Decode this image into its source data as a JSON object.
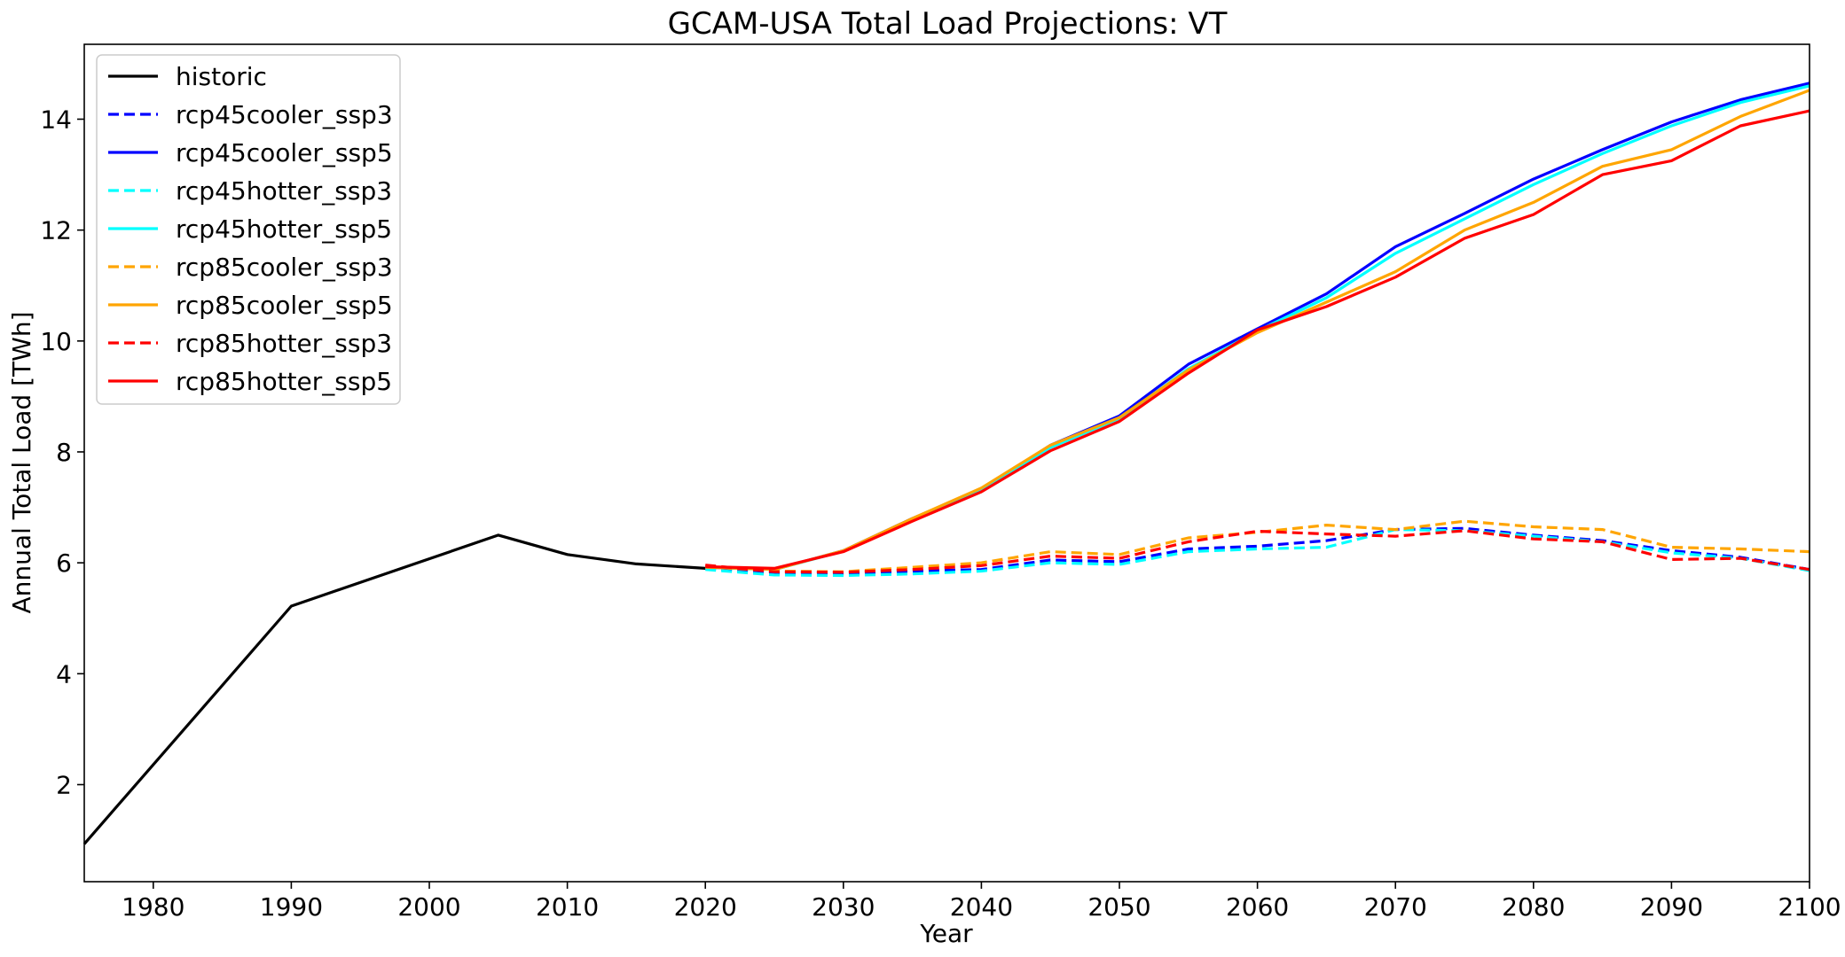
{
  "chart_data": {
    "type": "line",
    "title": "GCAM-USA Total Load Projections: VT",
    "xlabel": "Year",
    "ylabel": "Annual Total Load [TWh]",
    "xlim": [
      1975,
      2100
    ],
    "ylim": [
      0.25,
      15.35
    ],
    "xticks": [
      1980,
      1990,
      2000,
      2010,
      2020,
      2030,
      2040,
      2050,
      2060,
      2070,
      2080,
      2090,
      2100
    ],
    "yticks": [
      2,
      4,
      6,
      8,
      10,
      12,
      14
    ],
    "grid": false,
    "legend_position": "upper-left",
    "series": [
      {
        "name": "historic",
        "color": "#000000",
        "dash": "solid",
        "x": [
          1975,
          1990,
          2005,
          2010,
          2015,
          2020
        ],
        "y": [
          0.93,
          5.22,
          6.5,
          6.15,
          5.98,
          5.9
        ]
      },
      {
        "name": "rcp45cooler_ssp3",
        "color": "#0000ff",
        "dash": "dashed",
        "x": [
          2020,
          2025,
          2030,
          2035,
          2040,
          2045,
          2050,
          2055,
          2060,
          2065,
          2070,
          2075,
          2080,
          2085,
          2090,
          2095,
          2100
        ],
        "y": [
          5.9,
          5.82,
          5.8,
          5.85,
          5.88,
          6.05,
          6.02,
          6.25,
          6.3,
          6.4,
          6.6,
          6.62,
          6.5,
          6.4,
          6.22,
          6.1,
          5.88
        ]
      },
      {
        "name": "rcp45cooler_ssp5",
        "color": "#0000ff",
        "dash": "solid",
        "x": [
          2020,
          2025,
          2030,
          2035,
          2040,
          2045,
          2050,
          2055,
          2060,
          2065,
          2070,
          2075,
          2080,
          2085,
          2090,
          2095,
          2100
        ],
        "y": [
          5.92,
          5.88,
          6.22,
          6.8,
          7.32,
          8.12,
          8.65,
          9.58,
          10.22,
          10.85,
          11.7,
          12.3,
          12.92,
          13.45,
          13.95,
          14.35,
          14.65
        ]
      },
      {
        "name": "rcp45hotter_ssp3",
        "color": "#00ffff",
        "dash": "dashed",
        "x": [
          2020,
          2025,
          2030,
          2035,
          2040,
          2045,
          2050,
          2055,
          2060,
          2065,
          2070,
          2075,
          2080,
          2085,
          2090,
          2095,
          2100
        ],
        "y": [
          5.88,
          5.78,
          5.77,
          5.8,
          5.85,
          6.0,
          5.97,
          6.2,
          6.25,
          6.28,
          6.6,
          6.58,
          6.48,
          6.38,
          6.18,
          6.08,
          5.86
        ]
      },
      {
        "name": "rcp45hotter_ssp5",
        "color": "#00ffff",
        "dash": "solid",
        "x": [
          2020,
          2025,
          2030,
          2035,
          2040,
          2045,
          2050,
          2055,
          2060,
          2065,
          2070,
          2075,
          2080,
          2085,
          2090,
          2095,
          2100
        ],
        "y": [
          5.92,
          5.88,
          6.21,
          6.78,
          7.3,
          8.08,
          8.6,
          9.5,
          10.18,
          10.78,
          11.58,
          12.2,
          12.82,
          13.38,
          13.88,
          14.3,
          14.6
        ]
      },
      {
        "name": "rcp85cooler_ssp3",
        "color": "#ffa500",
        "dash": "dashed",
        "x": [
          2020,
          2025,
          2030,
          2035,
          2040,
          2045,
          2050,
          2055,
          2060,
          2065,
          2070,
          2075,
          2080,
          2085,
          2090,
          2095,
          2100
        ],
        "y": [
          5.93,
          5.85,
          5.84,
          5.92,
          6.0,
          6.2,
          6.15,
          6.45,
          6.55,
          6.68,
          6.6,
          6.75,
          6.65,
          6.6,
          6.28,
          6.25,
          6.2
        ]
      },
      {
        "name": "rcp85cooler_ssp5",
        "color": "#ffa500",
        "dash": "solid",
        "x": [
          2020,
          2025,
          2030,
          2035,
          2040,
          2045,
          2050,
          2055,
          2060,
          2065,
          2070,
          2075,
          2080,
          2085,
          2090,
          2095,
          2100
        ],
        "y": [
          5.92,
          5.88,
          6.22,
          6.8,
          7.35,
          8.12,
          8.62,
          9.48,
          10.15,
          10.7,
          11.25,
          12.0,
          12.5,
          13.15,
          13.45,
          14.05,
          14.52
        ]
      },
      {
        "name": "rcp85hotter_ssp3",
        "color": "#ff0000",
        "dash": "dashed",
        "x": [
          2020,
          2025,
          2030,
          2035,
          2040,
          2045,
          2050,
          2055,
          2060,
          2065,
          2070,
          2075,
          2080,
          2085,
          2090,
          2095,
          2100
        ],
        "y": [
          5.96,
          5.84,
          5.83,
          5.88,
          5.95,
          6.12,
          6.08,
          6.38,
          6.57,
          6.52,
          6.48,
          6.58,
          6.43,
          6.38,
          6.06,
          6.08,
          5.88
        ]
      },
      {
        "name": "rcp85hotter_ssp5",
        "color": "#ff0000",
        "dash": "solid",
        "x": [
          2020,
          2025,
          2030,
          2035,
          2040,
          2045,
          2050,
          2055,
          2060,
          2065,
          2070,
          2075,
          2080,
          2085,
          2090,
          2095,
          2100
        ],
        "y": [
          5.93,
          5.9,
          6.2,
          6.75,
          7.28,
          8.02,
          8.55,
          9.42,
          10.2,
          10.62,
          11.15,
          11.85,
          12.28,
          13.0,
          13.25,
          13.88,
          14.15
        ]
      }
    ]
  }
}
